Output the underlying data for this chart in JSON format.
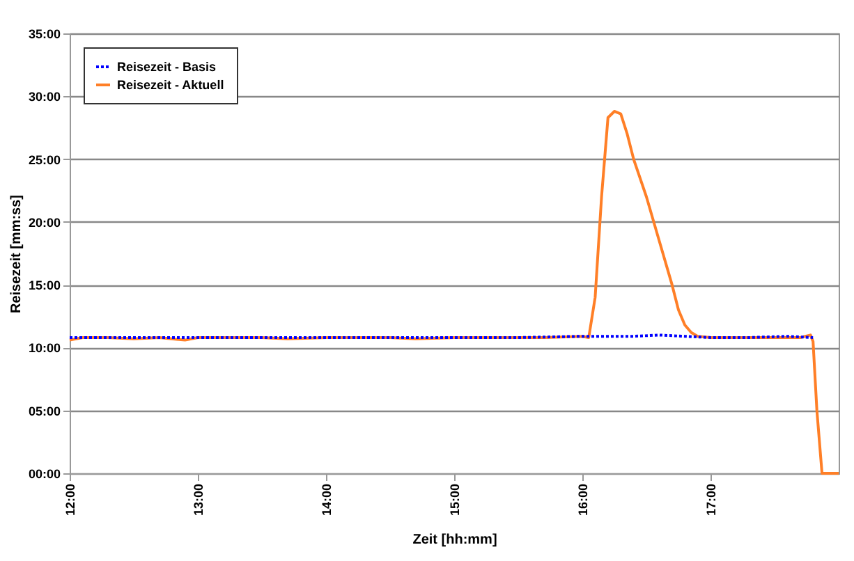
{
  "chart_data": {
    "type": "line",
    "xlabel": "Zeit [hh:mm]",
    "ylabel": "Reisezeit [mm:ss]",
    "xlim": [
      12,
      18
    ],
    "xticks": [
      {
        "value": 12,
        "label": "12:00"
      },
      {
        "value": 13,
        "label": "13:00"
      },
      {
        "value": 14,
        "label": "14:00"
      },
      {
        "value": 15,
        "label": "15:00"
      },
      {
        "value": 16,
        "label": "16:00"
      },
      {
        "value": 17,
        "label": "17:00"
      }
    ],
    "ylim": [
      0,
      35
    ],
    "yticks": [
      {
        "value": 0,
        "label": "00:00"
      },
      {
        "value": 5,
        "label": "05:00"
      },
      {
        "value": 10,
        "label": "10:00"
      },
      {
        "value": 15,
        "label": "15:00"
      },
      {
        "value": 20,
        "label": "20:00"
      },
      {
        "value": 25,
        "label": "25:00"
      },
      {
        "value": 30,
        "label": "30:00"
      },
      {
        "value": 35,
        "label": "35:00"
      }
    ],
    "grid": "y",
    "legend": "top left",
    "series": [
      {
        "name": "Reisezeit - Basis",
        "color": "#0000ff",
        "line_style": "dotted",
        "x": [
          12,
          12.5,
          13,
          13.5,
          14,
          14.5,
          15,
          15.5,
          16,
          16.2,
          16.4,
          16.6,
          16.8,
          17,
          17.3,
          17.6,
          17.8
        ],
        "values": [
          10.8,
          10.8,
          10.8,
          10.8,
          10.8,
          10.8,
          10.8,
          10.8,
          10.9,
          10.9,
          10.9,
          11,
          10.9,
          10.8,
          10.8,
          10.9,
          10.8
        ]
      },
      {
        "name": "Reisezeit - Aktuell",
        "color": "#ff7f27",
        "line_style": "solid",
        "x": [
          12,
          12.1,
          12.3,
          12.5,
          12.7,
          12.9,
          13,
          13.3,
          13.5,
          13.7,
          14,
          14.3,
          14.5,
          14.7,
          15,
          15.3,
          15.5,
          15.7,
          16,
          16.05,
          16.1,
          16.15,
          16.2,
          16.25,
          16.3,
          16.35,
          16.4,
          16.5,
          16.6,
          16.7,
          16.75,
          16.8,
          16.85,
          16.9,
          17,
          17.2,
          17.4,
          17.6,
          17.7,
          17.78,
          17.8,
          17.83,
          17.87,
          18
        ],
        "values": [
          10.6,
          10.8,
          10.8,
          10.7,
          10.8,
          10.6,
          10.8,
          10.8,
          10.8,
          10.7,
          10.8,
          10.8,
          10.8,
          10.7,
          10.8,
          10.8,
          10.8,
          10.8,
          10.9,
          10.8,
          14,
          22,
          28.3,
          28.8,
          28.6,
          27,
          25,
          22,
          18.5,
          15,
          13,
          11.8,
          11.2,
          10.9,
          10.8,
          10.8,
          10.8,
          10.8,
          10.8,
          11,
          10.5,
          5,
          0,
          0
        ]
      }
    ]
  }
}
